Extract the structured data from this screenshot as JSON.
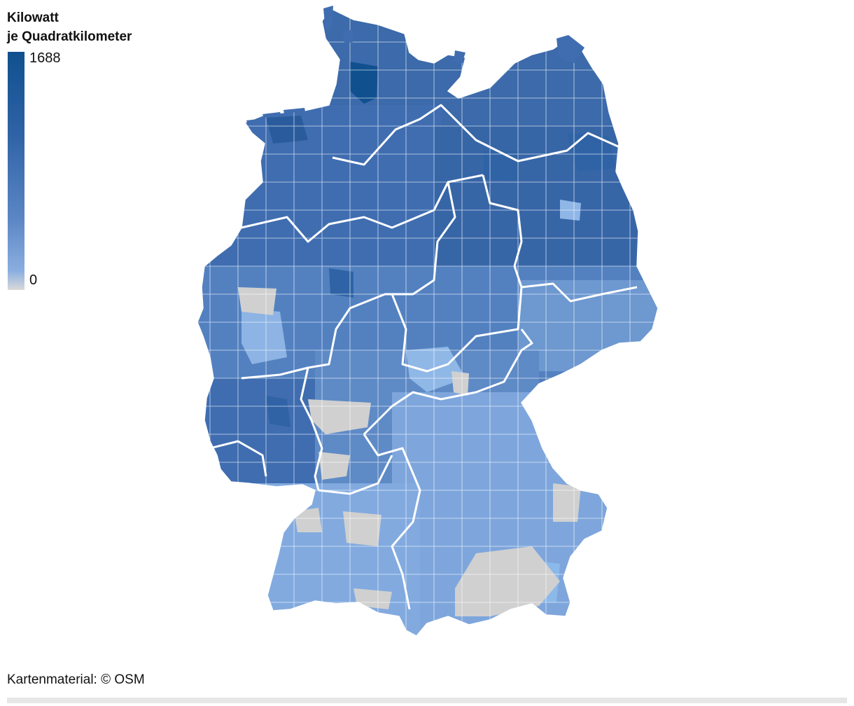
{
  "legend": {
    "title_line1": "Kilowatt",
    "title_line2": "je Quadratkilometer",
    "max_label": "1688",
    "min_label": "0",
    "colors": {
      "max": "#10508f",
      "high": "#2f63a6",
      "mid": "#5b86c4",
      "low": "#8aaee0",
      "no_data": "#d0d0d0"
    }
  },
  "map": {
    "region": "Deutschland",
    "border_color": "#ffffff",
    "regions_north": "dark-blue",
    "regions_south": "light-blue"
  },
  "footer": {
    "credit": "Kartenmaterial: © OSM"
  }
}
